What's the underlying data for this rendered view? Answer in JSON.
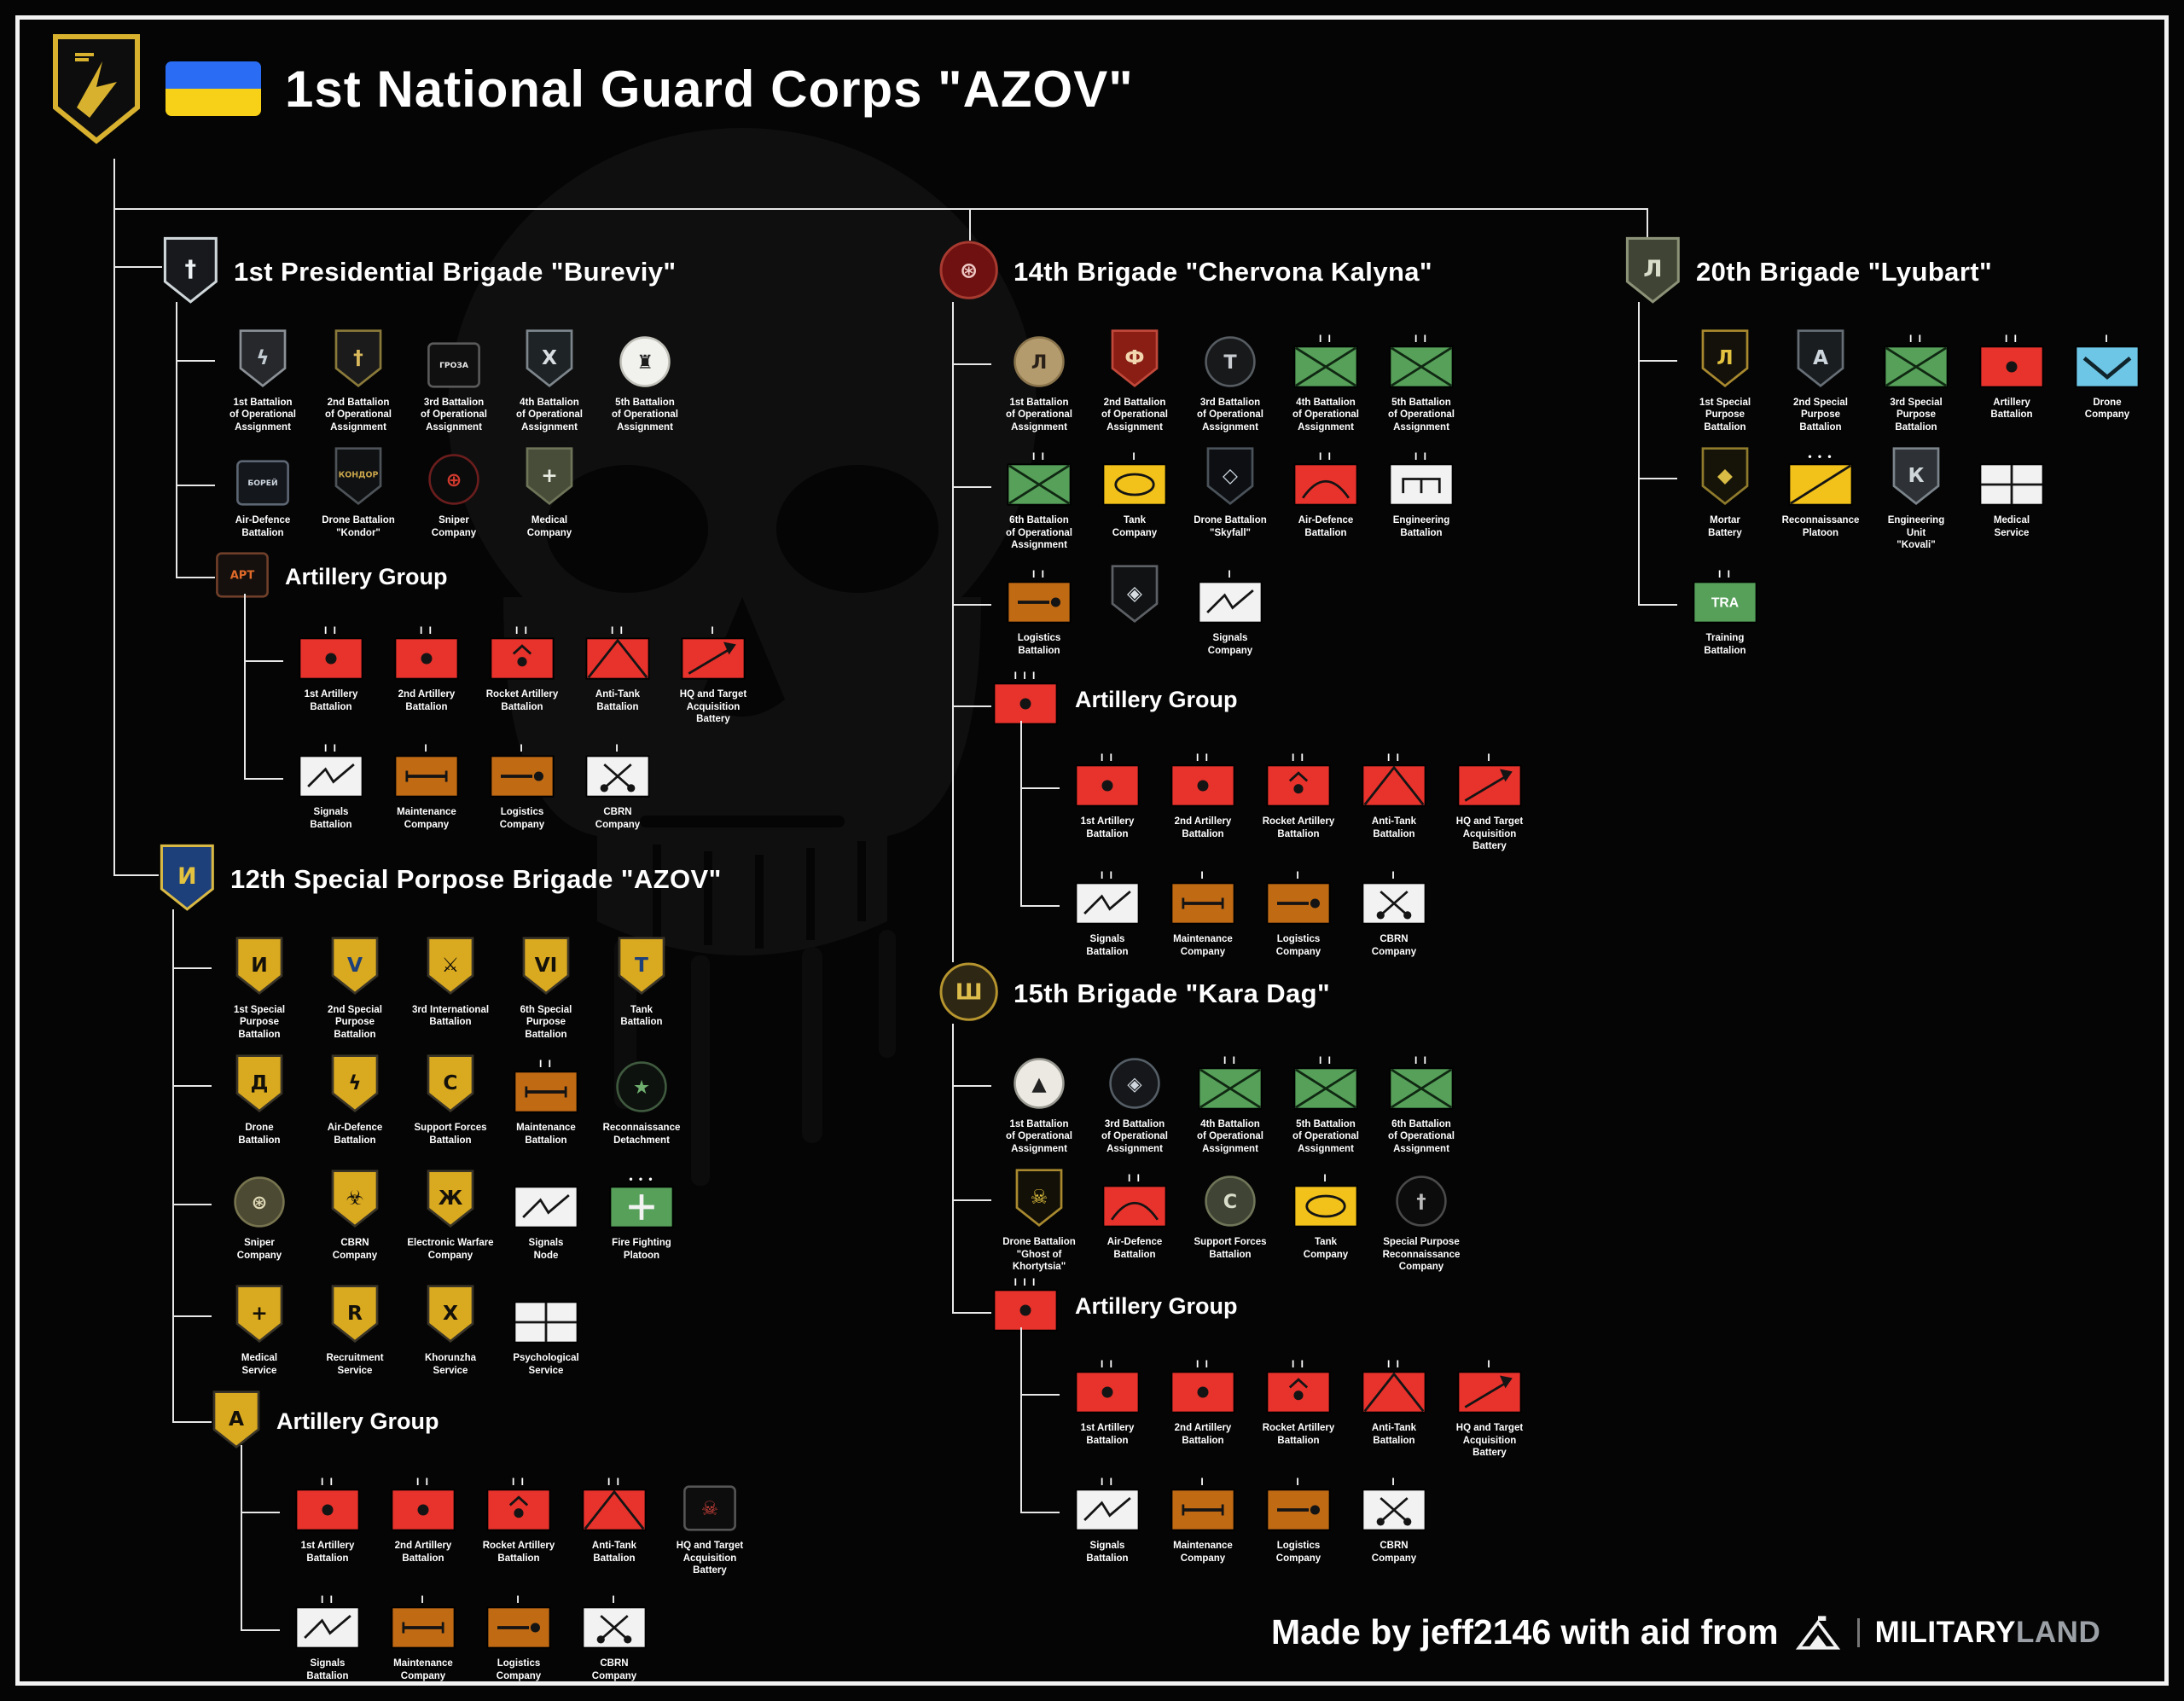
{
  "title": {
    "main": "1st National Guard Corps \"AZOV\""
  },
  "footer": {
    "credit": "Made by jeff2146 with aid from",
    "brand_main": "MILITARY",
    "brand_sub": "LAND"
  },
  "palette": {
    "red": "#e8322c",
    "green": "#56a05a",
    "yellow": "#f2c21a",
    "orange": "#c06a14",
    "light_blue": "#6ec6e6",
    "gold": "#d9a91f",
    "line": "#e8e8e8",
    "background": "#050505"
  },
  "icon_legend": {
    "artillery": "red rect with dot",
    "rocket": "red rect dot+chevron",
    "antitank": "red rect inverted-V",
    "hqta": "red rect arrow",
    "signals": "white rect lightning",
    "maint": "orange rect bar",
    "logi": "orange rect bar+dot",
    "cbrn": "white rect crossed retorts",
    "opx": "green rect X (operational assignment)",
    "tank": "yellow rect oval",
    "eng": "white rect bridge",
    "airdef": "red rect dome arc",
    "grid": "white rect quartered",
    "drone": "light-blue rect chevron",
    "recon": "yellow rect slash",
    "training": "green rect TRA",
    "fire": "green rect cross"
  },
  "shared": {
    "ag_rows": [
      [
        {
          "label": "1st Artillery\nBattalion",
          "kind": "sym",
          "sym": "artillery",
          "ech": "II"
        },
        {
          "label": "2nd Artillery\nBattalion",
          "kind": "sym",
          "sym": "artillery",
          "ech": "II"
        },
        {
          "label": "Rocket Artillery\nBattalion",
          "kind": "sym",
          "sym": "rocket",
          "ech": "II"
        },
        {
          "label": "Anti-Tank\nBattalion",
          "kind": "sym",
          "sym": "antitank",
          "ech": "II"
        },
        {
          "label": "HQ and Target\nAcquisition\nBattery",
          "kind": "sym",
          "sym": "hqta",
          "ech": "I"
        }
      ],
      [
        {
          "label": "Signals\nBattalion",
          "kind": "sym",
          "sym": "signals",
          "ech": "II"
        },
        {
          "label": "Maintenance\nCompany",
          "kind": "sym",
          "sym": "maint",
          "ech": "I"
        },
        {
          "label": "Logistics\nCompany",
          "kind": "sym",
          "sym": "logi",
          "ech": "I"
        },
        {
          "label": "CBRN\nCompany",
          "kind": "sym",
          "sym": "cbrn",
          "ech": "I"
        }
      ]
    ]
  },
  "brigades": [
    {
      "id": "bureviy",
      "title": "1st Presidential Brigade \"Bureviy\"",
      "header": {
        "kind": "patch",
        "shape": "shield",
        "bg": "#17191c",
        "bd": "#cfd6da",
        "fg": "#eef2f5",
        "glyph": "†"
      },
      "rows": [
        [
          {
            "label": "1st Battalion\nof Operational\nAssignment",
            "kind": "patch",
            "shape": "shield",
            "bg": "#26282b",
            "bd": "#8a9096",
            "fg": "#c3ccd3",
            "glyph": "ϟ"
          },
          {
            "label": "2nd Battalion\nof Operational\nAssignment",
            "kind": "patch",
            "shape": "shield",
            "bg": "#1b1b1b",
            "bd": "#8a7a3a",
            "fg": "#d9b95c",
            "glyph": "†"
          },
          {
            "label": "3rd Battalion\nof Operational\nAssignment",
            "kind": "patch",
            "shape": "rect",
            "bg": "#101010",
            "bd": "#5a5a5a",
            "fg": "#e8e8e8",
            "glyph": "ГРОЗА"
          },
          {
            "label": "4th Battalion\nof Operational\nAssignment",
            "kind": "patch",
            "shape": "shield",
            "bg": "#1e2326",
            "bd": "#7d868c",
            "fg": "#d7dde1",
            "glyph": "Х"
          },
          {
            "label": "5th Battalion\nof Operational\nAssignment",
            "kind": "patch",
            "shape": "circle",
            "bg": "#f1f1ee",
            "bd": "#c2c2ba",
            "fg": "#1c1c1c",
            "glyph": "♜"
          }
        ],
        [
          {
            "label": "Air-Defence\nBattalion",
            "kind": "patch",
            "shape": "rect",
            "bg": "#14171c",
            "bd": "#5d6673",
            "fg": "#cdd6df",
            "glyph": "БОРЕЙ"
          },
          {
            "label": "Drone Battalion\n\"Kondor\"",
            "kind": "patch",
            "shape": "shield",
            "bg": "#0f1113",
            "bd": "#4d5358",
            "fg": "#c9a54a",
            "glyph": "КОНДОР"
          },
          {
            "label": "Sniper\nCompany",
            "kind": "patch",
            "shape": "circle",
            "bg": "#0b0b0b",
            "bd": "#6b1d1d",
            "fg": "#d23a2e",
            "glyph": "⊕"
          },
          {
            "label": "Medical\nCompany",
            "kind": "patch",
            "shape": "shield",
            "bg": "#474d38",
            "bd": "#6d7458",
            "fg": "#e9ece2",
            "glyph": "+"
          }
        ]
      ],
      "ag": {
        "title": "Artillery Group",
        "icon": {
          "kind": "patch",
          "shape": "rect",
          "bg": "#15100d",
          "bd": "#6f3f2a",
          "fg": "#e06a2a",
          "glyph": "АРТ"
        },
        "rows": "shared"
      }
    },
    {
      "id": "chervona",
      "title": "14th Brigade \"Chervona Kalyna\"",
      "header": {
        "kind": "patch",
        "shape": "circle",
        "bg": "#6e1110",
        "bd": "#a83a30",
        "fg": "#efc9c5",
        "glyph": "⊛"
      },
      "rows": [
        [
          {
            "label": "1st Battalion\nof Operational\nAssignment",
            "kind": "patch",
            "shape": "circle",
            "bg": "#b49b6e",
            "bd": "#8a744c",
            "fg": "#2a2118",
            "glyph": "Л"
          },
          {
            "label": "2nd Battalion\nof Operational\nAssignment",
            "kind": "patch",
            "shape": "shield",
            "bg": "#8a1d14",
            "bd": "#c0483a",
            "fg": "#f2d6b0",
            "glyph": "Ф"
          },
          {
            "label": "3rd Battalion\nof Operational\nAssignment",
            "kind": "patch",
            "shape": "circle",
            "bg": "#17191b",
            "bd": "#565c61",
            "fg": "#c9cdd2",
            "glyph": "Т"
          },
          {
            "label": "4th Battalion\nof Operational\nAssignment",
            "kind": "sym",
            "sym": "opx",
            "ech": "II"
          },
          {
            "label": "5th Battalion\nof Operational\nAssignment",
            "kind": "sym",
            "sym": "opx",
            "ech": "II"
          }
        ],
        [
          {
            "label": "6th Battalion\nof Operational\nAssignment",
            "kind": "sym",
            "sym": "opx",
            "ech": "II"
          },
          {
            "label": "Tank\nCompany",
            "kind": "sym",
            "sym": "tank",
            "ech": "I"
          },
          {
            "label": "Drone Battalion\n\"Skyfall\"",
            "kind": "patch",
            "shape": "shield",
            "bg": "#0d0f12",
            "bd": "#4a525a",
            "fg": "#cfd8e2",
            "glyph": "◇"
          },
          {
            "label": "Air-Defence\nBattalion",
            "kind": "sym",
            "sym": "airdef",
            "ech": "II"
          },
          {
            "label": "Engineering\nBattalion",
            "kind": "sym",
            "sym": "eng",
            "ech": "II"
          }
        ],
        [
          {
            "label": "Logistics\nBattalion",
            "kind": "sym",
            "sym": "logi",
            "ech": "II"
          },
          {
            "label": "",
            "kind": "patch",
            "shape": "shield",
            "bg": "#101214",
            "bd": "#5d6166",
            "fg": "#d8dde2",
            "glyph": "◈"
          },
          {
            "label": "Signals\nCompany",
            "kind": "sym",
            "sym": "signals",
            "ech": "I"
          }
        ]
      ],
      "ag": {
        "title": "Artillery Group",
        "icon": {
          "kind": "sym",
          "sym": "artillery",
          "ech": "III"
        },
        "rows": "shared"
      }
    },
    {
      "id": "lyubart",
      "title": "20th Brigade \"Lyubart\"",
      "header": {
        "kind": "patch",
        "shape": "shield",
        "bg": "#3f4434",
        "bd": "#8b9277",
        "fg": "#d9decb",
        "glyph": "Л"
      },
      "rows": [
        [
          {
            "label": "1st Special\nPurpose\nBattalion",
            "kind": "patch",
            "shape": "shield",
            "bg": "#14110b",
            "bd": "#a8892f",
            "fg": "#e3c23f",
            "glyph": "Л"
          },
          {
            "label": "2nd Special\nPurpose\nBattalion",
            "kind": "patch",
            "shape": "shield",
            "bg": "#1a1d20",
            "bd": "#666e76",
            "fg": "#cdd5dd",
            "glyph": "А"
          },
          {
            "label": "3rd Special\nPurpose\nBattalion",
            "kind": "sym",
            "sym": "opx",
            "ech": "II"
          },
          {
            "label": "Artillery\nBattalion",
            "kind": "sym",
            "sym": "artillery",
            "ech": "II"
          },
          {
            "label": "Drone\nCompany",
            "kind": "sym",
            "sym": "drone",
            "ech": "I"
          }
        ],
        [
          {
            "label": "Mortar\nBattery",
            "kind": "patch",
            "shape": "shield",
            "bg": "#161309",
            "bd": "#8f7b2c",
            "fg": "#d9bc45",
            "glyph": "◆"
          },
          {
            "label": "Reconnaissance\nPlatoon",
            "kind": "sym",
            "sym": "recon",
            "ech": "•••"
          },
          {
            "label": "Engineering\nUnit\n\"Kovali\"",
            "kind": "patch",
            "shape": "shield",
            "bg": "#2e3236",
            "bd": "#7b848b",
            "fg": "#cfd6da",
            "glyph": "К"
          },
          {
            "label": "Medical\nService",
            "kind": "sym",
            "sym": "grid",
            "ech": ""
          }
        ],
        [
          {
            "label": "Training\nBattalion",
            "kind": "sym",
            "sym": "training",
            "ech": "II"
          }
        ]
      ]
    },
    {
      "id": "azov12",
      "title": "12th Special Porpose Brigade \"AZOV\"",
      "header": {
        "kind": "patch",
        "shape": "shield",
        "bg": "#1d3f7a",
        "bd": "#d9b945",
        "fg": "#e3c23f",
        "glyph": "И"
      },
      "rows": [
        [
          {
            "label": "1st Special\nPurpose\nBattalion",
            "kind": "patch",
            "shape": "shield",
            "bg": "#d9a91f",
            "bd": "#3a3528",
            "fg": "#14110b",
            "glyph": "И"
          },
          {
            "label": "2nd Special\nPurpose\nBattalion",
            "kind": "patch",
            "shape": "shield",
            "bg": "#d9a91f",
            "bd": "#3a3528",
            "fg": "#1d3f7a",
            "glyph": "V"
          },
          {
            "label": "3rd International\nBattalion",
            "kind": "patch",
            "shape": "shield",
            "bg": "#d9a91f",
            "bd": "#3a3528",
            "fg": "#14110b",
            "glyph": "⚔"
          },
          {
            "label": "6th Special\nPurpose\nBattalion",
            "kind": "patch",
            "shape": "shield",
            "bg": "#d9a91f",
            "bd": "#3a3528",
            "fg": "#14110b",
            "glyph": "VI"
          },
          {
            "label": "Tank\nBattalion",
            "kind": "patch",
            "shape": "shield",
            "bg": "#d9a91f",
            "bd": "#3a3528",
            "fg": "#1d3f7a",
            "glyph": "Т"
          }
        ],
        [
          {
            "label": "Drone\nBattalion",
            "kind": "patch",
            "shape": "shield",
            "bg": "#d9a91f",
            "bd": "#3a3528",
            "fg": "#14110b",
            "glyph": "Д"
          },
          {
            "label": "Air-Defence\nBattalion",
            "kind": "patch",
            "shape": "shield",
            "bg": "#d9a91f",
            "bd": "#3a3528",
            "fg": "#14110b",
            "glyph": "ϟ"
          },
          {
            "label": "Support Forces\nBattalion",
            "kind": "patch",
            "shape": "shield",
            "bg": "#d9a91f",
            "bd": "#3a3528",
            "fg": "#14110b",
            "glyph": "С"
          },
          {
            "label": "Maintenance\nBattalion",
            "kind": "sym",
            "sym": "maint",
            "ech": "II"
          },
          {
            "label": "Reconnaissance\nDetachment",
            "kind": "patch",
            "shape": "circle",
            "bg": "#0e120e",
            "bd": "#3f5a3f",
            "fg": "#6fae6f",
            "glyph": "★"
          }
        ],
        [
          {
            "label": "Sniper\nCompany",
            "kind": "patch",
            "shape": "circle",
            "bg": "#4c4a33",
            "bd": "#77744f",
            "fg": "#ded9b5",
            "glyph": "⊛"
          },
          {
            "label": "CBRN\nCompany",
            "kind": "patch",
            "shape": "shield",
            "bg": "#d9a91f",
            "bd": "#3a3528",
            "fg": "#14110b",
            "glyph": "☣"
          },
          {
            "label": "Electronic Warfare\nCompany",
            "kind": "patch",
            "shape": "shield",
            "bg": "#d9a91f",
            "bd": "#3a3528",
            "fg": "#14110b",
            "glyph": "Ж"
          },
          {
            "label": "Signals\nNode",
            "kind": "sym",
            "sym": "signals",
            "ech": ""
          },
          {
            "label": "Fire Fighting\nPlatoon",
            "kind": "sym",
            "sym": "fire",
            "ech": "•••"
          }
        ],
        [
          {
            "label": "Medical\nService",
            "kind": "patch",
            "shape": "shield",
            "bg": "#d9a91f",
            "bd": "#3a3528",
            "fg": "#14110b",
            "glyph": "+"
          },
          {
            "label": "Recruitment\nService",
            "kind": "patch",
            "shape": "shield",
            "bg": "#d9a91f",
            "bd": "#3a3528",
            "fg": "#14110b",
            "glyph": "R"
          },
          {
            "label": "Khorunzha\nService",
            "kind": "patch",
            "shape": "shield",
            "bg": "#d9a91f",
            "bd": "#3a3528",
            "fg": "#14110b",
            "glyph": "Х"
          },
          {
            "label": "Psychological\nService",
            "kind": "sym",
            "sym": "grid",
            "ech": ""
          }
        ]
      ],
      "ag": {
        "title": "Artillery Group",
        "icon": {
          "kind": "patch",
          "shape": "shield",
          "bg": "#d9a91f",
          "bd": "#3a3528",
          "fg": "#14110b",
          "glyph": "А"
        },
        "rows": [
          [
            {
              "label": "1st Artillery\nBattalion",
              "kind": "sym",
              "sym": "artillery",
              "ech": "II"
            },
            {
              "label": "2nd Artillery\nBattalion",
              "kind": "sym",
              "sym": "artillery",
              "ech": "II"
            },
            {
              "label": "Rocket Artillery\nBattalion",
              "kind": "sym",
              "sym": "rocket",
              "ech": "II"
            },
            {
              "label": "Anti-Tank\nBattalion",
              "kind": "sym",
              "sym": "antitank",
              "ech": "II"
            },
            {
              "label": "HQ and Target\nAcquisition\nBattery",
              "kind": "patch",
              "shape": "rect",
              "bg": "#0d0d0d",
              "bd": "#555555",
              "fg": "#c9413a",
              "glyph": "☠"
            }
          ],
          [
            {
              "label": "Signals\nBattalion",
              "kind": "sym",
              "sym": "signals",
              "ech": "II"
            },
            {
              "label": "Maintenance\nCompany",
              "kind": "sym",
              "sym": "maint",
              "ech": "I"
            },
            {
              "label": "Logistics\nCompany",
              "kind": "sym",
              "sym": "logi",
              "ech": "I"
            },
            {
              "label": "CBRN\nCompany",
              "kind": "sym",
              "sym": "cbrn",
              "ech": "I"
            }
          ]
        ]
      }
    },
    {
      "id": "karadag",
      "title": "15th Brigade \"Kara Dag\"",
      "header": {
        "kind": "patch",
        "shape": "circle",
        "bg": "#2e2713",
        "bd": "#b6952f",
        "fg": "#dcbc4a",
        "glyph": "Ш"
      },
      "rows": [
        [
          {
            "label": "1st Battalion\nof Operational\nAssignment",
            "kind": "patch",
            "shape": "circle",
            "bg": "#ece9e2",
            "bd": "#9a9a92",
            "fg": "#222222",
            "glyph": "▲"
          },
          {
            "label": "3rd Battalion\nof Operational\nAssignment",
            "kind": "patch",
            "shape": "circle",
            "bg": "#15171a",
            "bd": "#555e66",
            "fg": "#cfd6dd",
            "glyph": "◈"
          },
          {
            "label": "4th Battalion\nof Operational\nAssignment",
            "kind": "sym",
            "sym": "opx",
            "ech": "II"
          },
          {
            "label": "5th Battalion\nof Operational\nAssignment",
            "kind": "sym",
            "sym": "opx",
            "ech": "II"
          },
          {
            "label": "6th Battalion\nof Operational\nAssignment",
            "kind": "sym",
            "sym": "opx",
            "ech": "II"
          }
        ],
        [
          {
            "label": "Drone Battalion\n\"Ghost of Khortytsia\"",
            "kind": "patch",
            "shape": "shield",
            "bg": "#121007",
            "bd": "#a8892f",
            "fg": "#e3c23f",
            "glyph": "☠"
          },
          {
            "label": "Air-Defence\nBattalion",
            "kind": "sym",
            "sym": "airdef",
            "ech": "II"
          },
          {
            "label": "Support Forces\nBattalion",
            "kind": "patch",
            "shape": "circle",
            "bg": "#3f4434",
            "bd": "#6f7558",
            "fg": "#d9decb",
            "glyph": "С"
          },
          {
            "label": "Tank\nCompany",
            "kind": "sym",
            "sym": "tank",
            "ech": "I"
          },
          {
            "label": "Special Purpose\nReconnaissance\nCompany",
            "kind": "patch",
            "shape": "circle",
            "bg": "#0c0c0c",
            "bd": "#4a4a4a",
            "fg": "#bbbbbb",
            "glyph": "†"
          }
        ]
      ],
      "ag": {
        "title": "Artillery Group",
        "icon": {
          "kind": "sym",
          "sym": "artillery",
          "ech": "III"
        },
        "rows": "shared"
      }
    }
  ]
}
